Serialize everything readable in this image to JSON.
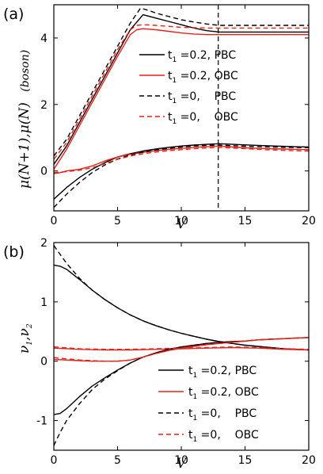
{
  "chart_data": [
    {
      "type": "line",
      "panel_label": "(a)",
      "xlabel": "V",
      "ylabel": "μ(N+1),μ(N)",
      "ylabel_note": "(boson)",
      "xlim": [
        0,
        20
      ],
      "ylim": [
        -1.2,
        5
      ],
      "xticks": [
        "0",
        "5",
        "10",
        "15",
        "20"
      ],
      "yticks": [
        "0",
        "2",
        "4"
      ],
      "xtick_values": [
        0,
        5,
        10,
        15,
        20
      ],
      "ytick_values": [
        0,
        2,
        4
      ],
      "vline_x": 12.9,
      "legend_position": "right",
      "legend": [
        {
          "param": "t",
          "sub": "1",
          "rest": " =0.2, PBC",
          "color": "#000000",
          "dash": "solid"
        },
        {
          "param": "t",
          "sub": "1",
          "rest": " =0.2, OBC",
          "color": "#e8201a",
          "dash": "solid"
        },
        {
          "param": "t",
          "sub": "1",
          "rest": " =0,    PBC",
          "color": "#000000",
          "dash": "dashed"
        },
        {
          "param": "t",
          "sub": "1",
          "rest": " =0,    OBC",
          "color": "#e8201a",
          "dash": "dashed"
        }
      ],
      "series": [
        {
          "color": "#000000",
          "dash": "solid",
          "x": [
            0,
            1,
            2,
            3,
            4,
            5,
            6,
            7,
            8,
            9,
            10,
            11,
            12,
            13,
            14,
            16,
            18,
            20
          ],
          "y": [
            0.2,
            0.75,
            1.45,
            2.15,
            2.85,
            3.55,
            4.25,
            4.7,
            4.6,
            4.5,
            4.4,
            4.3,
            4.22,
            4.18,
            4.18,
            4.18,
            4.18,
            4.18
          ]
        },
        {
          "color": "#e8201a",
          "dash": "solid",
          "x": [
            0,
            1,
            2,
            3,
            4,
            5,
            6,
            6.5,
            7,
            8,
            9,
            10,
            11,
            12,
            13,
            14,
            16,
            18,
            20
          ],
          "y": [
            0.05,
            0.65,
            1.35,
            2.05,
            2.75,
            3.45,
            4.1,
            4.25,
            4.28,
            4.25,
            4.2,
            4.15,
            4.12,
            4.1,
            4.1,
            4.1,
            4.1,
            4.1,
            4.1
          ]
        },
        {
          "color": "#000000",
          "dash": "dashed",
          "x": [
            0,
            1,
            2,
            3,
            4,
            5,
            6,
            6.8,
            7.5,
            8,
            9,
            10,
            11,
            12,
            13,
            14,
            16,
            18,
            20
          ],
          "y": [
            0.45,
            0.95,
            1.65,
            2.35,
            3.05,
            3.75,
            4.45,
            4.9,
            4.82,
            4.75,
            4.65,
            4.55,
            4.48,
            4.42,
            4.38,
            4.38,
            4.38,
            4.38,
            4.38
          ]
        },
        {
          "color": "#e8201a",
          "dash": "dashed",
          "x": [
            0,
            1,
            2,
            3,
            4,
            5,
            6,
            6.5,
            7,
            8,
            10,
            12,
            14,
            16,
            18,
            20
          ],
          "y": [
            0.35,
            0.85,
            1.55,
            2.25,
            2.95,
            3.65,
            4.25,
            4.38,
            4.4,
            4.38,
            4.32,
            4.3,
            4.3,
            4.3,
            4.3,
            4.3
          ]
        },
        {
          "color": "#000000",
          "dash": "solid",
          "x": [
            0,
            1,
            2,
            3,
            4,
            5,
            6,
            7,
            8,
            9,
            10,
            11,
            12,
            13,
            14,
            16,
            18,
            20
          ],
          "y": [
            -0.85,
            -0.5,
            -0.2,
            0.05,
            0.25,
            0.42,
            0.52,
            0.6,
            0.66,
            0.71,
            0.75,
            0.78,
            0.8,
            0.82,
            0.8,
            0.77,
            0.74,
            0.72
          ]
        },
        {
          "color": "#e8201a",
          "dash": "solid",
          "x": [
            0,
            0.5,
            1,
            2,
            3,
            4,
            5,
            6,
            7,
            8,
            9,
            10,
            11,
            12,
            13,
            14,
            16,
            18,
            20
          ],
          "y": [
            -0.08,
            -0.05,
            0.0,
            0.05,
            0.15,
            0.3,
            0.42,
            0.5,
            0.56,
            0.61,
            0.65,
            0.68,
            0.71,
            0.73,
            0.75,
            0.72,
            0.68,
            0.66,
            0.64
          ]
        },
        {
          "color": "#000000",
          "dash": "dashed",
          "x": [
            0,
            1,
            2,
            3,
            4,
            5,
            6,
            7,
            8,
            9,
            10,
            11,
            12,
            13,
            14,
            16,
            18,
            20
          ],
          "y": [
            -1.1,
            -0.7,
            -0.35,
            -0.05,
            0.18,
            0.36,
            0.48,
            0.57,
            0.63,
            0.68,
            0.72,
            0.75,
            0.77,
            0.78,
            0.76,
            0.73,
            0.71,
            0.7
          ]
        },
        {
          "color": "#e8201a",
          "dash": "dashed",
          "x": [
            0,
            1,
            2,
            3,
            4,
            5,
            6,
            7,
            8,
            9,
            10,
            11,
            12,
            13,
            14,
            16,
            18,
            20
          ],
          "y": [
            -0.05,
            -0.02,
            0.02,
            0.1,
            0.22,
            0.35,
            0.45,
            0.52,
            0.57,
            0.61,
            0.64,
            0.67,
            0.69,
            0.71,
            0.69,
            0.65,
            0.62,
            0.6
          ]
        }
      ]
    },
    {
      "type": "line",
      "panel_label": "(b)",
      "xlabel": "V",
      "ylabel": "ν",
      "ylabel_sub1": "1",
      "ylabel_mid": ",ν",
      "ylabel_sub2": "2",
      "xlim": [
        0,
        20
      ],
      "ylim": [
        -1.5,
        2
      ],
      "xticks": [
        "0",
        "5",
        "10",
        "15",
        "20"
      ],
      "yticks": [
        "-1",
        "0",
        "1",
        "2"
      ],
      "xtick_values": [
        0,
        5,
        10,
        15,
        20
      ],
      "ytick_values": [
        -1,
        0,
        1,
        2
      ],
      "legend_position": "bottom-right",
      "legend": [
        {
          "param": "t",
          "sub": "1",
          "rest": " =0.2, PBC",
          "color": "#000000",
          "dash": "solid"
        },
        {
          "param": "t",
          "sub": "1",
          "rest": " =0.2, OBC",
          "color": "#e8201a",
          "dash": "solid"
        },
        {
          "param": "t",
          "sub": "1",
          "rest": " =0,    PBC",
          "color": "#000000",
          "dash": "dashed"
        },
        {
          "param": "t",
          "sub": "1",
          "rest": " =0,    OBC",
          "color": "#e8201a",
          "dash": "dashed"
        }
      ],
      "series": [
        {
          "color": "#000000",
          "dash": "solid",
          "x": [
            0,
            0.5,
            1,
            2,
            3,
            4,
            5,
            6,
            7,
            8,
            9,
            10,
            11,
            12,
            13,
            14,
            15,
            16,
            17,
            18,
            19,
            20
          ],
          "y": [
            1.62,
            1.6,
            1.55,
            1.38,
            1.2,
            1.04,
            0.9,
            0.78,
            0.68,
            0.6,
            0.53,
            0.47,
            0.42,
            0.37,
            0.33,
            0.3,
            0.27,
            0.25,
            0.23,
            0.21,
            0.2,
            0.19
          ]
        },
        {
          "color": "#000000",
          "dash": "dashed",
          "x": [
            0,
            0.5,
            1,
            2,
            3,
            4,
            5,
            6,
            7,
            8,
            9,
            10,
            11,
            12,
            13,
            14,
            15,
            16,
            17,
            18,
            19,
            20
          ],
          "y": [
            1.95,
            1.8,
            1.65,
            1.4,
            1.2,
            1.04,
            0.9,
            0.78,
            0.68,
            0.6,
            0.53,
            0.47,
            0.42,
            0.37,
            0.33,
            0.3,
            0.27,
            0.25,
            0.23,
            0.21,
            0.2,
            0.19
          ]
        },
        {
          "color": "#e8201a",
          "dash": "solid",
          "x": [
            0,
            2,
            4,
            6,
            8,
            10,
            12,
            14,
            16,
            18,
            20
          ],
          "y": [
            0.22,
            0.2,
            0.19,
            0.19,
            0.2,
            0.21,
            0.22,
            0.23,
            0.22,
            0.2,
            0.19
          ]
        },
        {
          "color": "#000000",
          "dash": "solid",
          "x": [
            0,
            0.5,
            1,
            2,
            3,
            4,
            5,
            6,
            7,
            8,
            9,
            10,
            11,
            12,
            13,
            14,
            15,
            16,
            17,
            18,
            19,
            20
          ],
          "y": [
            -0.9,
            -0.88,
            -0.8,
            -0.6,
            -0.42,
            -0.28,
            -0.15,
            -0.03,
            0.07,
            0.14,
            0.2,
            0.24,
            0.27,
            0.3,
            0.32,
            0.33,
            0.34,
            0.36,
            0.37,
            0.38,
            0.39,
            0.4
          ]
        },
        {
          "color": "#000000",
          "dash": "dashed",
          "x": [
            0,
            0.5,
            1,
            2,
            3,
            4,
            5,
            6,
            7,
            8,
            9,
            10,
            11,
            12,
            13,
            14,
            15,
            16,
            17,
            18,
            19,
            20
          ],
          "y": [
            -1.42,
            -1.2,
            -1.0,
            -0.72,
            -0.48,
            -0.3,
            -0.16,
            -0.03,
            0.07,
            0.14,
            0.2,
            0.24,
            0.27,
            0.3,
            0.32,
            0.33,
            0.34,
            0.36,
            0.37,
            0.38,
            0.39,
            0.4
          ]
        },
        {
          "color": "#e8201a",
          "dash": "solid",
          "x": [
            0,
            1,
            2,
            3,
            4,
            5,
            6,
            7,
            8,
            9,
            10,
            11,
            12,
            13,
            14,
            15,
            16,
            17,
            18,
            19,
            20
          ],
          "y": [
            0.03,
            0.02,
            0.01,
            0.0,
            0.0,
            0.0,
            0.02,
            0.07,
            0.13,
            0.18,
            0.22,
            0.25,
            0.28,
            0.3,
            0.32,
            0.34,
            0.36,
            0.37,
            0.38,
            0.39,
            0.4
          ]
        },
        {
          "color": "#e8201a",
          "dash": "dashed",
          "x": [
            0,
            1,
            2,
            3,
            4,
            5,
            6,
            7,
            8,
            9,
            10,
            11,
            12,
            13,
            14,
            15,
            16,
            17,
            18,
            19,
            20
          ],
          "y": [
            0.06,
            0.04,
            0.02,
            0.01,
            0.0,
            0.0,
            0.02,
            0.07,
            0.13,
            0.18,
            0.22,
            0.25,
            0.28,
            0.3,
            0.32,
            0.34,
            0.36,
            0.37,
            0.38,
            0.39,
            0.4
          ]
        },
        {
          "color": "#e8201a",
          "dash": "dashed",
          "x": [
            0,
            2,
            4,
            6,
            8,
            10,
            12,
            14,
            16,
            18,
            20
          ],
          "y": [
            0.24,
            0.21,
            0.2,
            0.2,
            0.21,
            0.22,
            0.23,
            0.24,
            0.23,
            0.21,
            0.2
          ]
        }
      ]
    }
  ]
}
